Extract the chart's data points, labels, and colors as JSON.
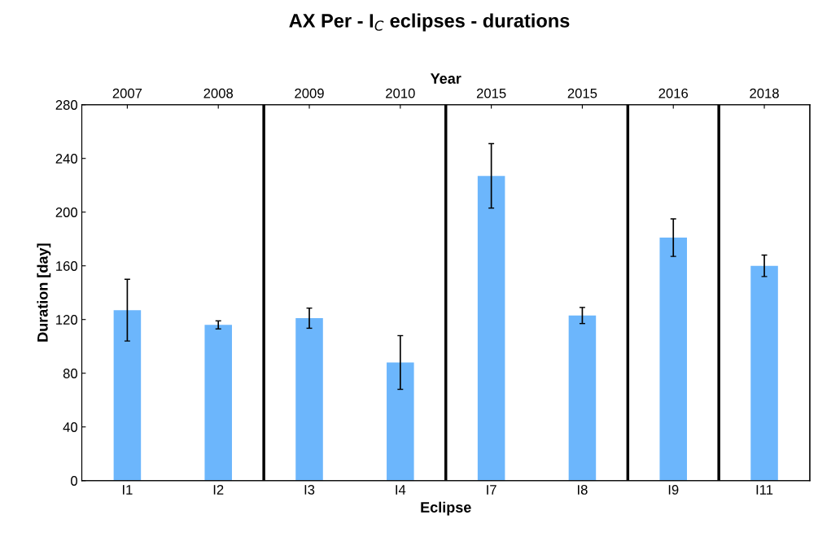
{
  "chart_data": {
    "type": "bar",
    "title": "AX Per - I$_{C}$ eclipses - durations",
    "xlabel": "Eclipse",
    "ylabel": "Duration [day]",
    "x2label": "Year",
    "categories": [
      "I1",
      "I2",
      "I3",
      "I4",
      "I7",
      "I8",
      "I9",
      "I11"
    ],
    "annotations": [
      {
        "text": "2007",
        "x": "I1"
      },
      {
        "text": "2008",
        "x": "I2"
      },
      {
        "text": "2009",
        "x": "I3"
      },
      {
        "text": "2010",
        "x": "I4"
      },
      {
        "text": "2015",
        "x": "I7"
      },
      {
        "text": "2015",
        "x": "I8"
      },
      {
        "text": "2016",
        "x": "I9"
      },
      {
        "text": "2018",
        "x": "I11"
      }
    ],
    "values": [
      127,
      116,
      121,
      88,
      227,
      123,
      181,
      160
    ],
    "errors": [
      23,
      3,
      7.5,
      20,
      24,
      6,
      14,
      8
    ],
    "color": "#6cb6fc",
    "ylim": [
      0,
      280
    ],
    "yticks": [
      0,
      40,
      80,
      120,
      160,
      200,
      240,
      280
    ],
    "grid": false
  }
}
